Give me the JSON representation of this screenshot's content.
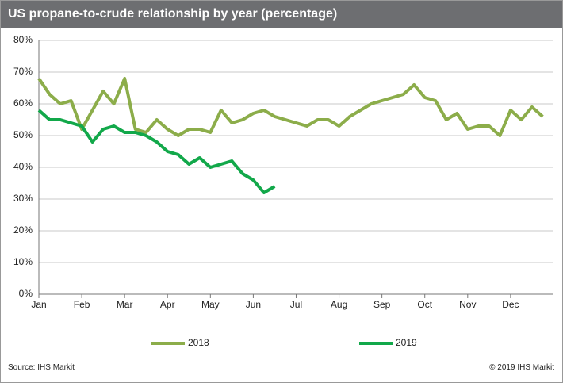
{
  "chart_data": {
    "type": "line",
    "title": "US propane-to-crude relationship by year (percentage)",
    "categories": [
      "Jan",
      null,
      null,
      null,
      "Feb",
      null,
      null,
      null,
      "Mar",
      null,
      null,
      null,
      "Apr",
      null,
      null,
      null,
      "May",
      null,
      null,
      null,
      "Jun",
      null,
      null,
      null,
      "Jul",
      null,
      null,
      null,
      "Aug",
      null,
      null,
      null,
      "Sep",
      null,
      null,
      null,
      "Oct",
      null,
      null,
      null,
      "Nov",
      null,
      null,
      null,
      "Dec",
      null,
      null,
      null
    ],
    "series": [
      {
        "name": "2018",
        "color": "#8cad4a",
        "values": [
          68,
          63,
          60,
          61,
          52,
          58,
          64,
          60,
          68,
          52,
          51,
          55,
          52,
          50,
          52,
          52,
          51,
          58,
          54,
          55,
          57,
          58,
          56,
          55,
          54,
          53,
          55,
          55,
          53,
          56,
          58,
          60,
          61,
          62,
          63,
          66,
          62,
          61,
          55,
          57,
          52,
          53,
          53,
          50,
          58,
          55,
          59,
          56
        ]
      },
      {
        "name": "2019",
        "color": "#12a84a",
        "values": [
          58,
          55,
          55,
          54,
          53,
          48,
          52,
          53,
          51,
          51,
          50,
          48,
          45,
          44,
          41,
          43,
          40,
          41,
          42,
          38,
          36,
          32,
          34,
          null,
          null,
          null,
          null,
          null,
          null,
          null,
          null,
          null,
          null,
          null,
          null,
          null,
          null,
          null,
          null,
          null,
          null,
          null,
          null,
          null,
          null,
          null,
          null,
          null
        ]
      }
    ],
    "ylim": [
      0,
      80
    ],
    "yticks": [
      {
        "value": 0,
        "label": "0%"
      },
      {
        "value": 10,
        "label": "10%"
      },
      {
        "value": 20,
        "label": "20%"
      },
      {
        "value": 30,
        "label": "30%"
      },
      {
        "value": 40,
        "label": "40%"
      },
      {
        "value": 50,
        "label": "50%"
      },
      {
        "value": 60,
        "label": "60%"
      },
      {
        "value": 70,
        "label": "70%"
      },
      {
        "value": 80,
        "label": "80%"
      }
    ],
    "grid": true,
    "source": "Source: IHS Markit",
    "copyright": "© 2019 IHS Markit"
  }
}
